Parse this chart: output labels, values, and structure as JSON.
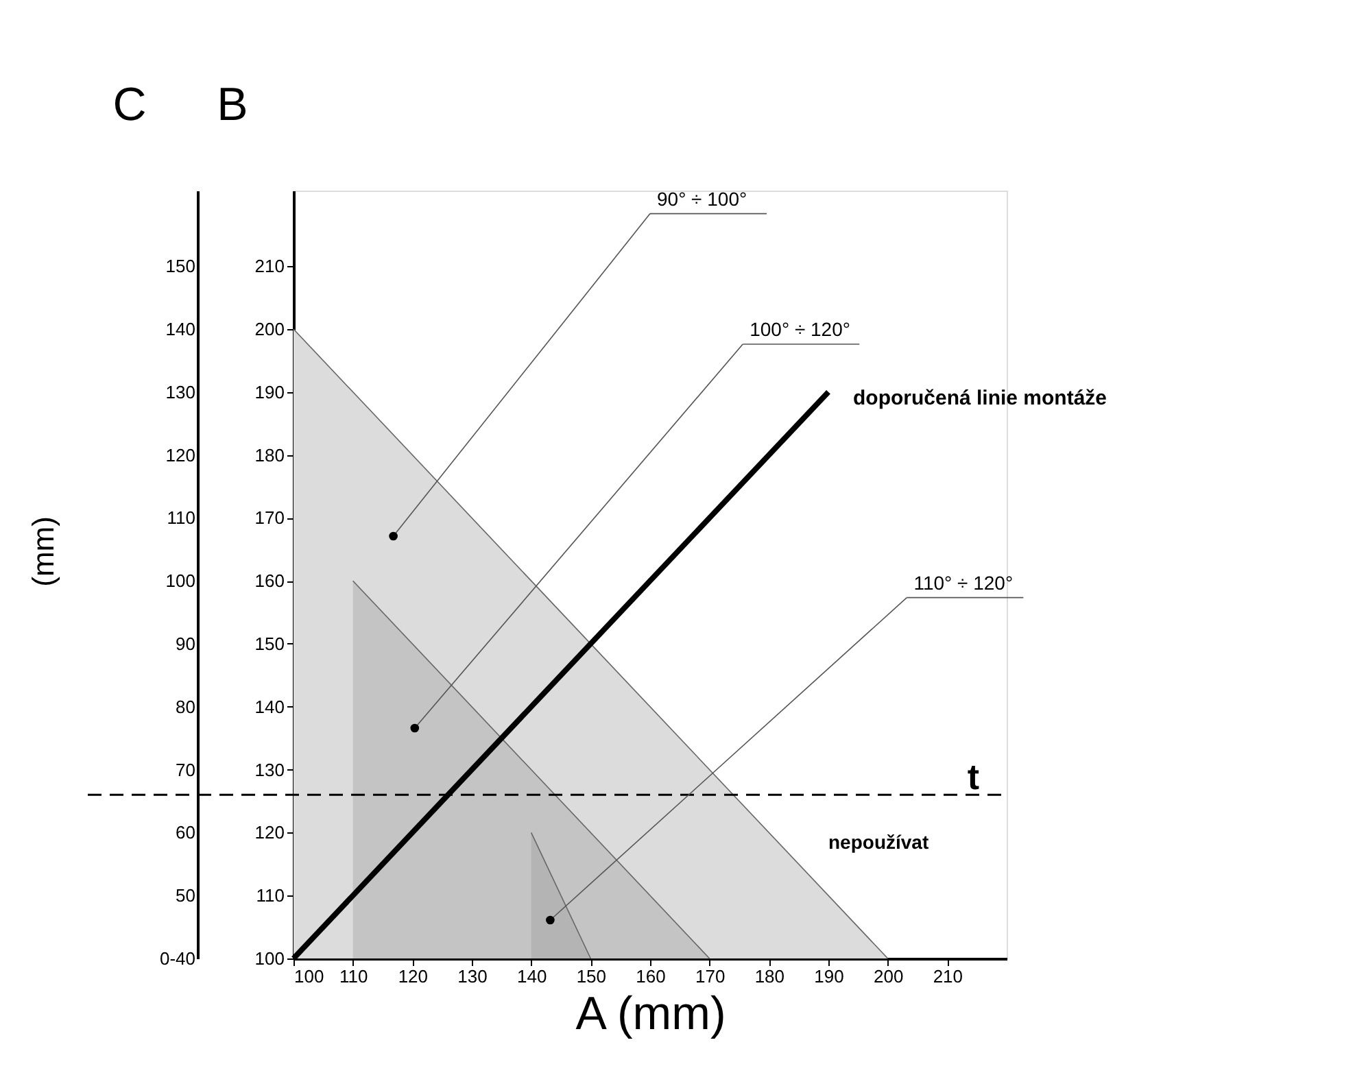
{
  "chart_data": {
    "type": "area",
    "xlabel": "A  (mm)",
    "ylabel": "B",
    "y2label": "C",
    "xlim": [
      100,
      220
    ],
    "xticks": [
      100,
      110,
      120,
      130,
      140,
      150,
      160,
      170,
      180,
      190,
      200,
      210
    ],
    "ylim": [
      100,
      222
    ],
    "yticks": [
      100,
      110,
      120,
      130,
      140,
      150,
      160,
      170,
      180,
      190,
      200,
      210
    ],
    "y2lim": [
      40,
      162
    ],
    "y2ticks": [
      {
        "value": 40,
        "label": "0-40"
      },
      50,
      60,
      70,
      80,
      90,
      100,
      110,
      120,
      130,
      140,
      150
    ],
    "series": [
      {
        "color": "#dcdcdc",
        "x": [
          100,
          200
        ],
        "values": [
          200,
          100
        ]
      },
      {
        "color": "#c4c4c4",
        "x": [
          110,
          170
        ],
        "values": [
          160,
          100
        ]
      },
      {
        "color": "#b4b4b4",
        "x": [
          140,
          150
        ],
        "values": [
          120,
          100
        ]
      },
      {
        "type": "line",
        "name": "doporučená linie montáže",
        "color": "#000000",
        "x": [
          100,
          190
        ],
        "values": [
          100,
          190
        ]
      }
    ],
    "ref_lines": [
      {
        "axis": "y",
        "value": 126,
        "label": "t",
        "color": "#000000",
        "line_style": "dashed"
      }
    ],
    "annotations": [
      "90° ÷ 100°",
      "100° ÷ 120°",
      "110° ÷ 120°",
      "nepoužívat",
      "(mm)"
    ],
    "grid": false
  }
}
